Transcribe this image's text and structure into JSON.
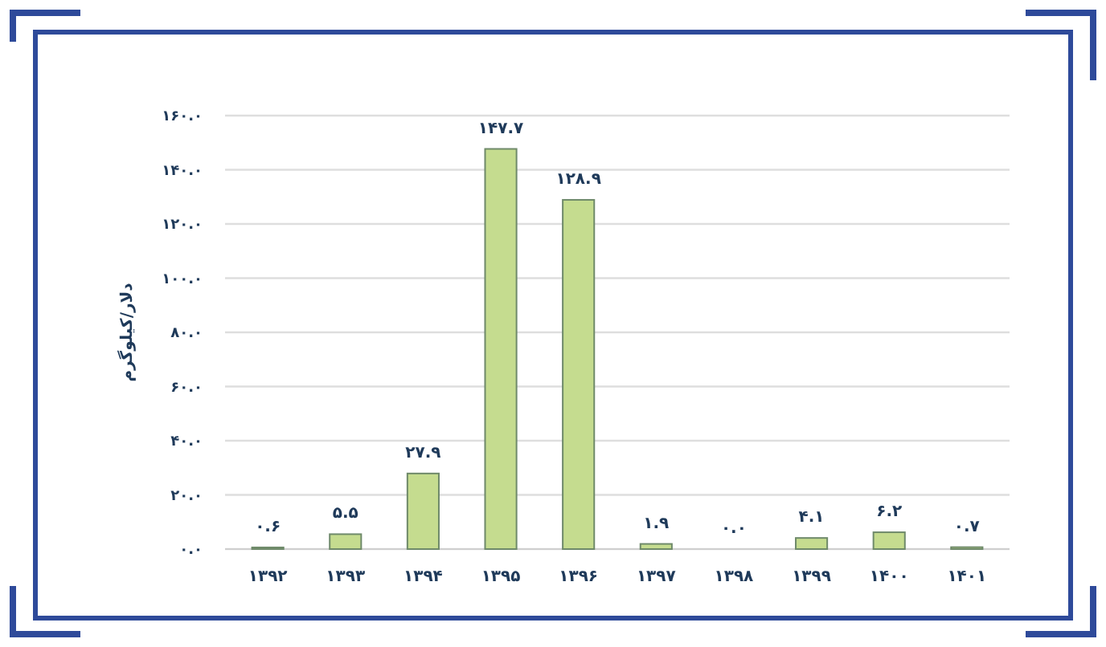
{
  "chart_data": {
    "type": "bar",
    "ylabel": "دلار/کیلوگرم",
    "categories": [
      "۱۳۹۲",
      "۱۳۹۳",
      "۱۳۹۴",
      "۱۳۹۵",
      "۱۳۹۶",
      "۱۳۹۷",
      "۱۳۹۸",
      "۱۳۹۹",
      "۱۴۰۰",
      "۱۴۰۱"
    ],
    "values": [
      0.6,
      5.5,
      27.9,
      147.7,
      128.9,
      1.9,
      0.0,
      4.1,
      6.2,
      0.7
    ],
    "value_labels": [
      "۰.۶",
      "۵.۵",
      "۲۷.۹",
      "۱۴۷.۷",
      "۱۲۸.۹",
      "۱.۹",
      "۰.۰",
      "۴.۱",
      "۶.۲",
      "۰.۷"
    ],
    "color": "#c5dc8f",
    "ylim": [
      0,
      160
    ],
    "yticks": [
      {
        "value": 0,
        "label": "۰.۰"
      },
      {
        "value": 20,
        "label": "۲۰.۰"
      },
      {
        "value": 40,
        "label": "۴۰.۰"
      },
      {
        "value": 60,
        "label": "۶۰.۰"
      },
      {
        "value": 80,
        "label": "۸۰.۰"
      },
      {
        "value": 100,
        "label": "۱۰۰.۰"
      },
      {
        "value": 120,
        "label": "۱۲۰.۰"
      },
      {
        "value": 140,
        "label": "۱۴۰.۰"
      },
      {
        "value": 160,
        "label": "۱۶۰.۰"
      }
    ],
    "grid": "y"
  }
}
